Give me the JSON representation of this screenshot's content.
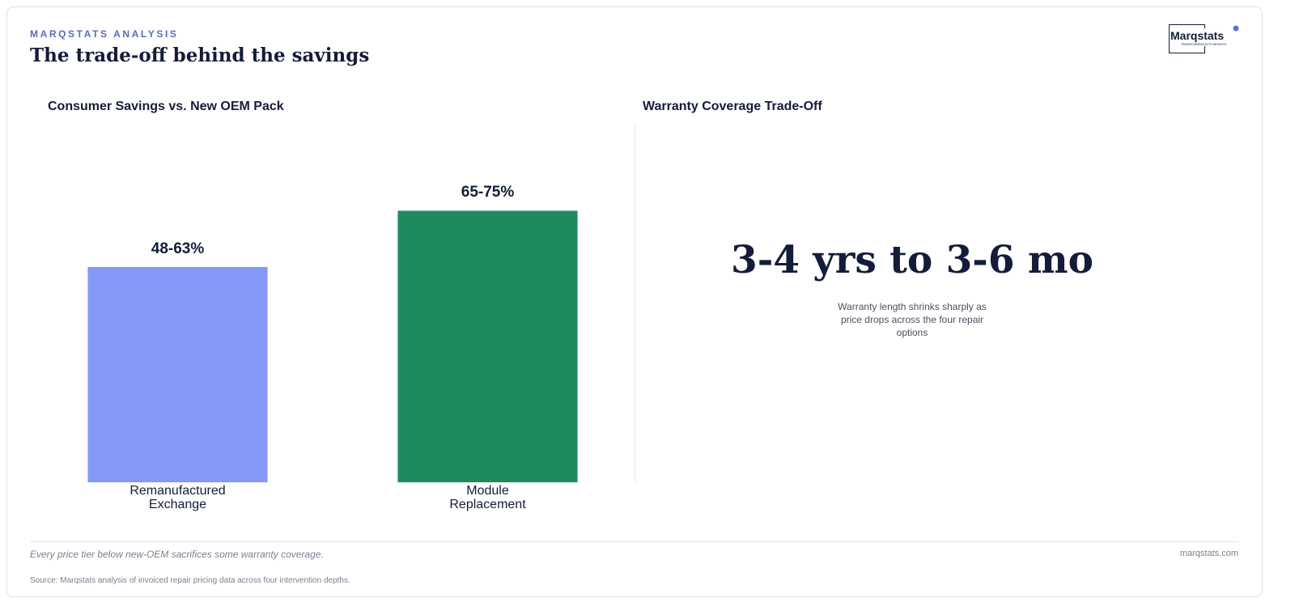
{
  "header": {
    "eyebrow": "MARQSTATS ANALYSIS",
    "title": "The trade-off behind the savings",
    "logo": "Marqstats",
    "logo_tagline": "TRANSFORMING AUTO INSIGHTS"
  },
  "chart_data": {
    "type": "bar",
    "title": "Consumer Savings vs. New OEM Pack",
    "categories": [
      "Remanufactured Exchange",
      "Module Replacement"
    ],
    "values": [
      55.5,
      70
    ],
    "value_labels": [
      "48-63%",
      "65-75%"
    ],
    "colors": [
      "#8399f5",
      "#208a5f"
    ],
    "ylim": [
      0,
      92
    ]
  },
  "warranty_panel": {
    "title": "Warranty Coverage Trade-Off",
    "headline": "3-4 yrs to 3-6 mo",
    "caption": "Warranty length shrinks sharply as price drops across the four repair options"
  },
  "footer": {
    "note": "Every price tier below new-OEM sacrifices some warranty coverage.",
    "site": "marqstats.com",
    "source": "Source: Marqstats analysis of invoiced repair pricing data across four intervention depths."
  }
}
